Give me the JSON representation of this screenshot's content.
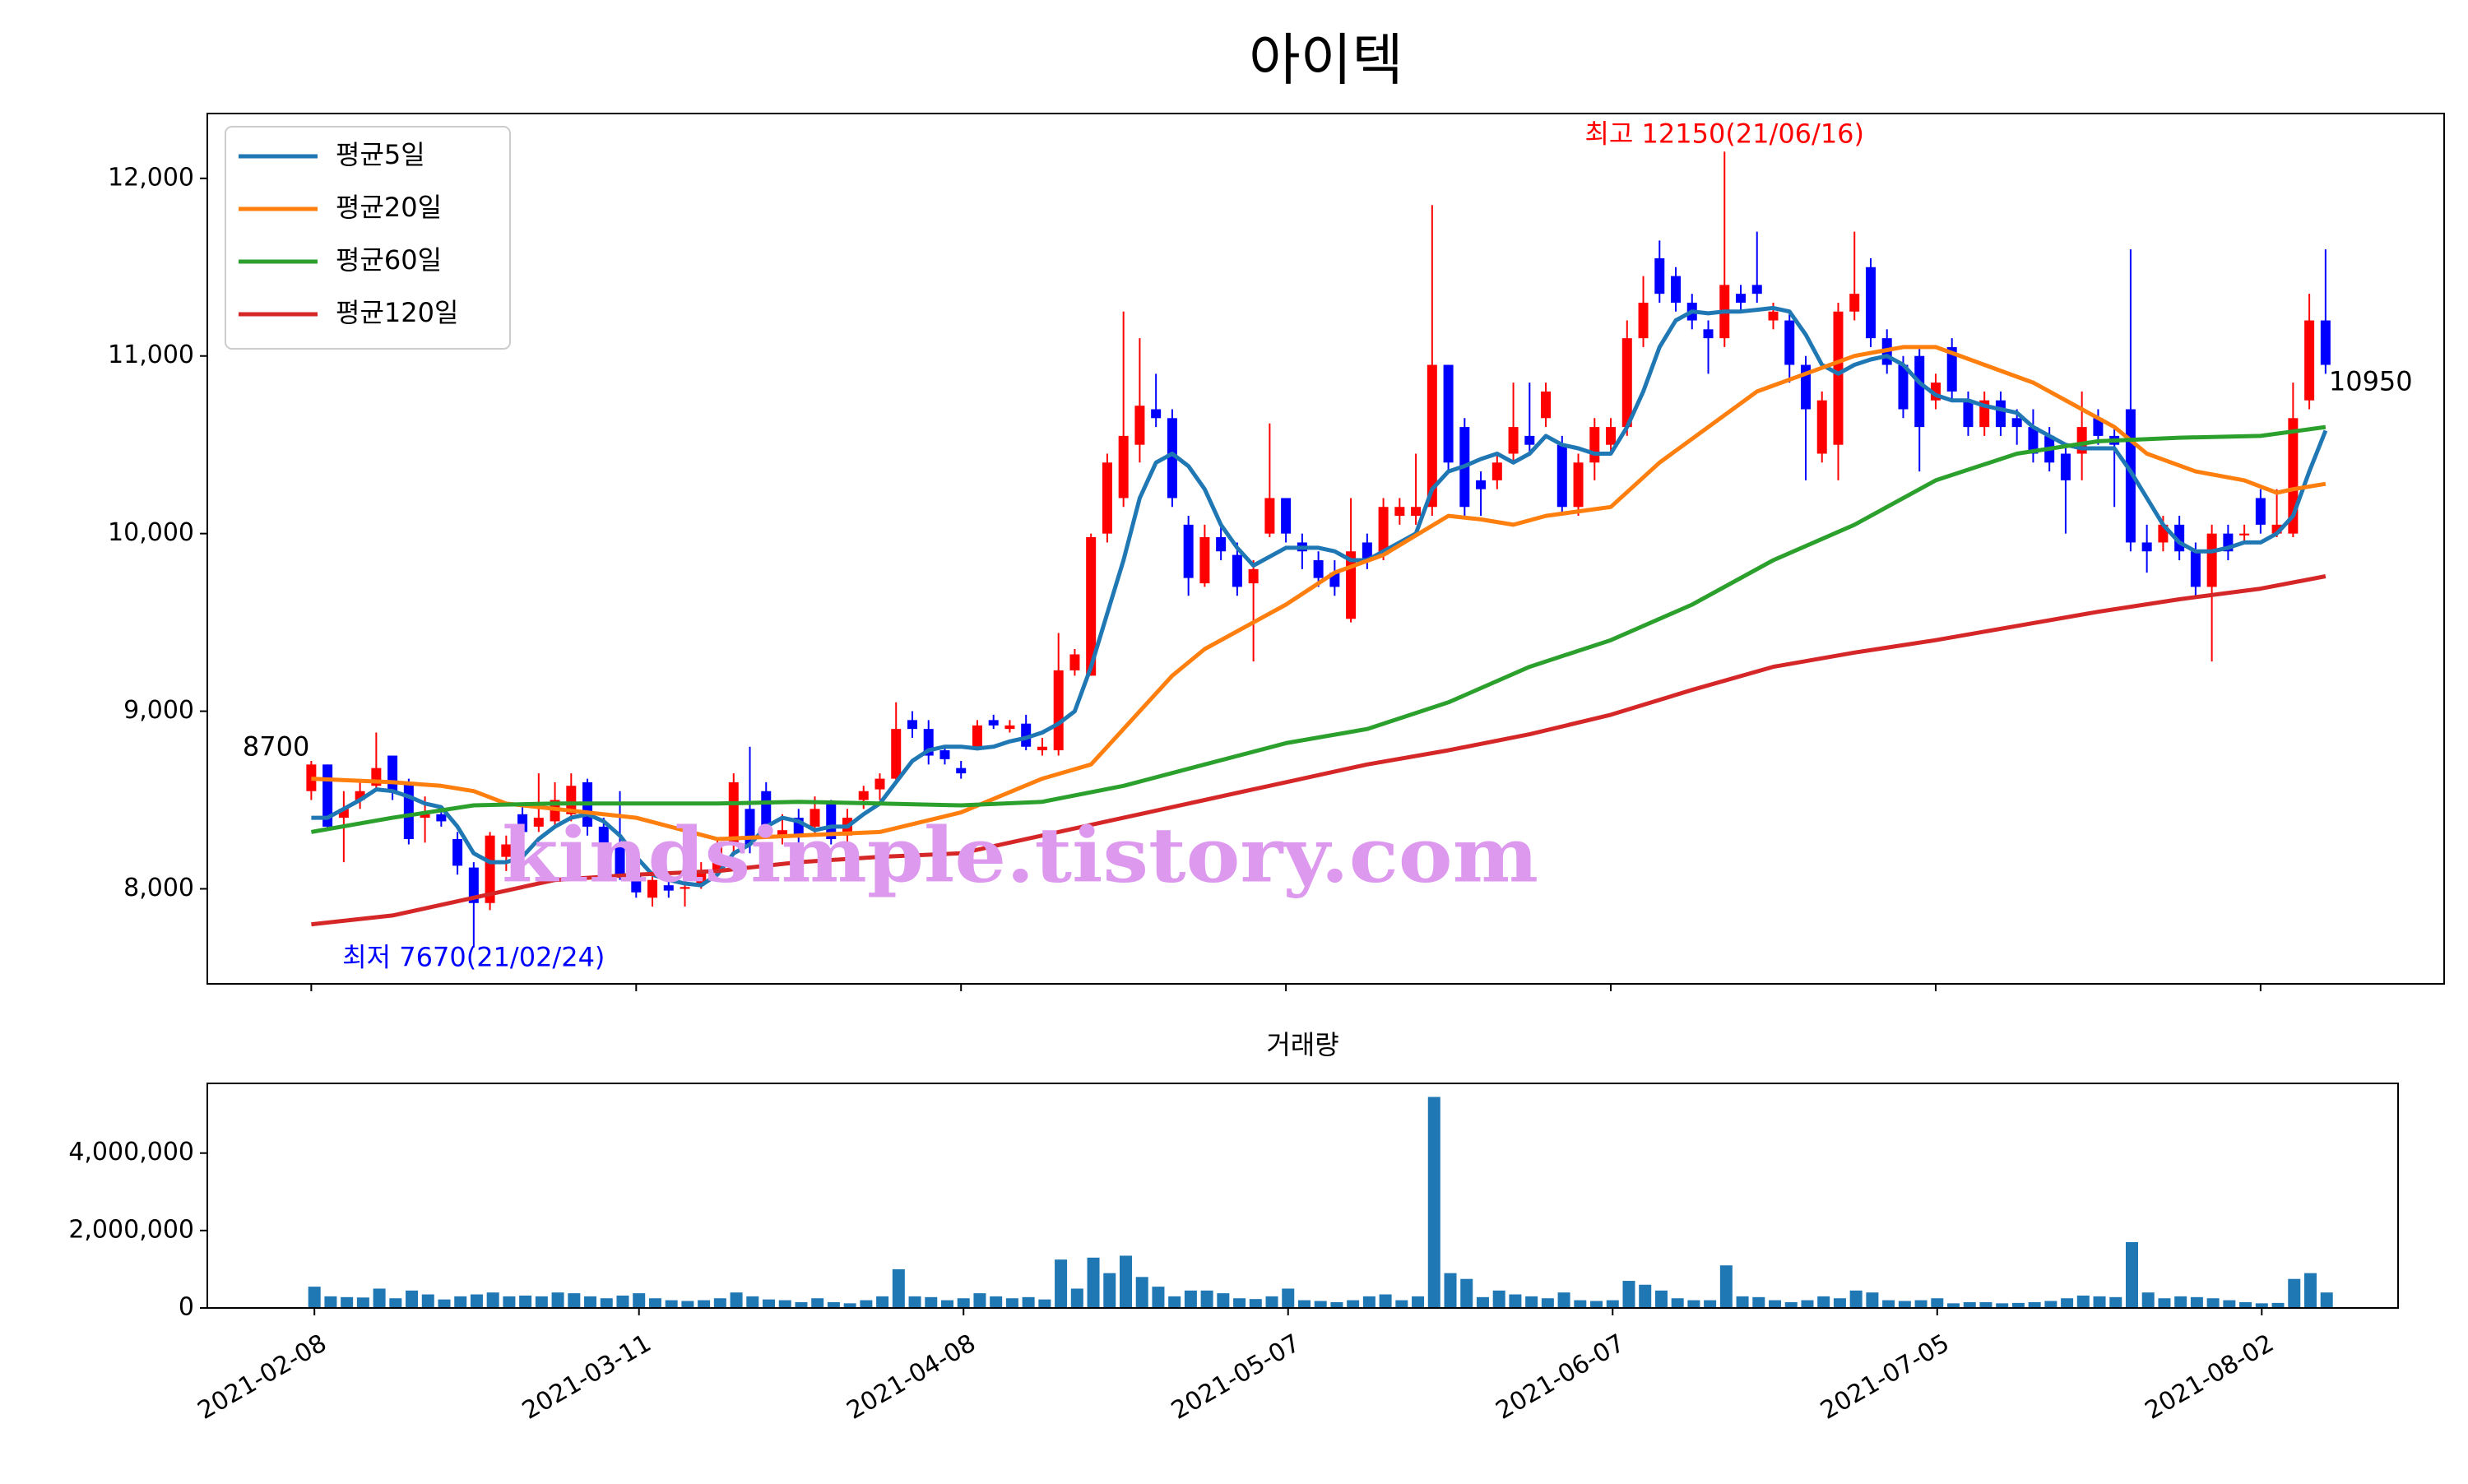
{
  "chart_data": [
    {
      "type": "candlestick",
      "title": "아이텍",
      "xlim": [
        -6.4,
        131.3
      ],
      "ylim": [
        7465,
        12365
      ],
      "yticks": [
        {
          "value": 8000,
          "label": "8,000"
        },
        {
          "value": 9000,
          "label": "9,000"
        },
        {
          "value": 10000,
          "label": "10,000"
        },
        {
          "value": 11000,
          "label": "11,000"
        },
        {
          "value": 12000,
          "label": "12,000"
        }
      ],
      "up_color": "#ff0000",
      "down_color": "#0000ff",
      "legend": "upper left",
      "open": [
        8550,
        8700,
        8400,
        8500,
        8580,
        8750,
        8600,
        8400,
        8420,
        8280,
        8120,
        7920,
        8180,
        8420,
        8350,
        8380,
        8420,
        8600,
        8350,
        8250,
        8080,
        7950,
        8020,
        8000,
        8030,
        8100,
        8250,
        8450,
        8550,
        8300,
        8400,
        8350,
        8480,
        8300,
        8500,
        8560,
        8620,
        8950,
        8900,
        8780,
        8680,
        8800,
        8950,
        8900,
        8930,
        8780,
        8780,
        9230,
        9200,
        10000,
        10200,
        10500,
        10700,
        10650,
        10050,
        9720,
        9980,
        9880,
        9720,
        10000,
        10200,
        9950,
        9850,
        9780,
        9520,
        9950,
        9880,
        10100,
        10100,
        10150,
        10950,
        10600,
        10300,
        10300,
        10450,
        10550,
        10650,
        10500,
        10150,
        10400,
        10500,
        10600,
        11100,
        11550,
        11450,
        11300,
        11150,
        11100,
        11350,
        11400,
        11200,
        11200,
        10950,
        10450,
        10500,
        11250,
        11500,
        11100,
        10950,
        11000,
        10750,
        11050,
        10750,
        10600,
        10750,
        10650,
        10600,
        10550,
        10450,
        10450,
        10650,
        10550,
        10700,
        9950,
        9950,
        10050,
        9900,
        9700,
        10000,
        9990,
        10200,
        10000,
        10000,
        10750,
        11200
      ],
      "high": [
        8720,
        8700,
        8550,
        8600,
        8880,
        8750,
        8620,
        8520,
        8450,
        8320,
        8150,
        8320,
        8300,
        8480,
        8650,
        8600,
        8650,
        8620,
        8400,
        8550,
        8100,
        8080,
        8050,
        8050,
        8150,
        8280,
        8650,
        8800,
        8600,
        8420,
        8450,
        8520,
        8500,
        8450,
        8580,
        8650,
        9050,
        9000,
        8950,
        8800,
        8720,
        8950,
        8980,
        8950,
        8980,
        8850,
        9440,
        9350,
        10000,
        10450,
        11250,
        11100,
        10900,
        10700,
        10100,
        10050,
        10050,
        9950,
        9850,
        10620,
        10200,
        10000,
        9900,
        9850,
        10200,
        10000,
        10200,
        10200,
        10450,
        11850,
        10950,
        10650,
        10350,
        10450,
        10850,
        10850,
        10850,
        10550,
        10450,
        10650,
        10650,
        11200,
        11450,
        11650,
        11500,
        11350,
        11200,
        12150,
        11400,
        11700,
        11300,
        11250,
        11000,
        10800,
        11300,
        11700,
        11550,
        11150,
        11000,
        11050,
        10900,
        11100,
        10800,
        10800,
        10800,
        10700,
        10700,
        10600,
        10500,
        10800,
        10700,
        10600,
        11600,
        10050,
        10100,
        10100,
        9950,
        10050,
        10050,
        10050,
        10250,
        10250,
        10850,
        11350,
        11600
      ],
      "low": [
        8500,
        8330,
        8150,
        8450,
        8550,
        8500,
        8250,
        8260,
        8350,
        8080,
        7670,
        7880,
        8100,
        8300,
        8320,
        8350,
        8380,
        8300,
        8150,
        8050,
        7950,
        7900,
        7950,
        7900,
        8000,
        8080,
        8200,
        8200,
        8300,
        8250,
        8250,
        8300,
        8250,
        8250,
        8450,
        8500,
        8600,
        8850,
        8700,
        8700,
        8620,
        8780,
        8900,
        8880,
        8780,
        8750,
        8750,
        9200,
        9200,
        9950,
        10150,
        10400,
        10600,
        10150,
        9650,
        9700,
        9850,
        9650,
        9280,
        9980,
        9950,
        9800,
        9700,
        9650,
        9500,
        9800,
        9850,
        10050,
        10050,
        10100,
        10350,
        10100,
        10100,
        10250,
        10400,
        10450,
        10600,
        10100,
        10100,
        10300,
        10450,
        10550,
        11050,
        11300,
        11250,
        11150,
        10900,
        11050,
        11250,
        11300,
        11150,
        10850,
        10300,
        10400,
        10300,
        11200,
        11050,
        10900,
        10650,
        10350,
        10700,
        10750,
        10550,
        10550,
        10550,
        10500,
        10400,
        10350,
        10000,
        10300,
        10500,
        10150,
        9900,
        9780,
        9900,
        9850,
        9650,
        9280,
        9850,
        9950,
        10000,
        9980,
        9980,
        10700,
        10900
      ],
      "close": [
        8700,
        8350,
        8450,
        8550,
        8680,
        8550,
        8280,
        8420,
        8380,
        8130,
        7920,
        8300,
        8250,
        8320,
        8400,
        8500,
        8580,
        8350,
        8200,
        8080,
        7980,
        8050,
        7990,
        8010,
        8100,
        8250,
        8600,
        8250,
        8350,
        8330,
        8300,
        8450,
        8280,
        8400,
        8550,
        8620,
        8900,
        8900,
        8750,
        8730,
        8650,
        8920,
        8920,
        8920,
        8800,
        8800,
        9230,
        9320,
        9980,
        10400,
        10550,
        10720,
        10650,
        10200,
        9750,
        9980,
        9900,
        9700,
        9800,
        10200,
        10000,
        9900,
        9750,
        9700,
        9900,
        9850,
        10150,
        10150,
        10150,
        10950,
        10400,
        10150,
        10250,
        10400,
        10600,
        10500,
        10800,
        10150,
        10400,
        10600,
        10600,
        11100,
        11300,
        11350,
        11300,
        11200,
        11100,
        11400,
        11300,
        11350,
        11250,
        10950,
        10700,
        10750,
        11250,
        11350,
        11100,
        10950,
        10700,
        10600,
        10850,
        10800,
        10600,
        10750,
        10600,
        10600,
        10450,
        10400,
        10300,
        10600,
        10550,
        10500,
        9950,
        9900,
        10050,
        9900,
        9700,
        10000,
        9900,
        10000,
        10050,
        10050,
        10650,
        11200,
        10950
      ],
      "series": [
        {
          "name": "평균5일",
          "color": "#1f77b4",
          "values": [
            8400,
            8400,
            8450,
            8500,
            8560,
            8550,
            8520,
            8480,
            8460,
            8350,
            8200,
            8150,
            8150,
            8180,
            8280,
            8350,
            8400,
            8420,
            8380,
            8300,
            8180,
            8080,
            8050,
            8030,
            8020,
            8080,
            8200,
            8250,
            8350,
            8400,
            8380,
            8330,
            8350,
            8350,
            8420,
            8480,
            8600,
            8720,
            8780,
            8800,
            8800,
            8790,
            8800,
            8830,
            8850,
            8880,
            8930,
            9000,
            9250,
            9550,
            9850,
            10200,
            10400,
            10450,
            10380,
            10250,
            10050,
            9920,
            9820,
            9870,
            9920,
            9920,
            9920,
            9900,
            9850,
            9850,
            9900,
            9950,
            10000,
            10250,
            10350,
            10380,
            10420,
            10450,
            10400,
            10450,
            10550,
            10500,
            10480,
            10450,
            10450,
            10600,
            10800,
            11050,
            11200,
            11250,
            11240,
            11250,
            11250,
            11260,
            11270,
            11250,
            11120,
            10950,
            10900,
            10950,
            10980,
            11000,
            10950,
            10850,
            10780,
            10750,
            10750,
            10720,
            10700,
            10680,
            10600,
            10550,
            10500,
            10480,
            10480,
            10480,
            10350,
            10200,
            10050,
            9950,
            9900,
            9900,
            9920,
            9950,
            9950,
            10000,
            10100,
            10350,
            10580
          ]
        },
        {
          "name": "평균20일",
          "color": "#ff7f0e",
          "x": [
            0,
            5,
            8,
            10,
            12,
            15,
            20,
            25,
            30,
            35,
            40,
            45,
            48,
            50,
            53,
            55,
            58,
            60,
            63,
            66,
            70,
            72,
            74,
            76,
            80,
            83,
            86,
            89,
            92,
            95,
            98,
            100,
            103,
            106,
            109,
            111,
            113,
            116,
            119,
            121,
            122,
            124
          ],
          "values": [
            8620,
            8600,
            8580,
            8550,
            8480,
            8450,
            8400,
            8280,
            8300,
            8320,
            8430,
            8620,
            8700,
            8900,
            9200,
            9350,
            9500,
            9600,
            9780,
            9880,
            10100,
            10080,
            10050,
            10100,
            10150,
            10400,
            10600,
            10800,
            10900,
            11000,
            11050,
            11050,
            10950,
            10850,
            10700,
            10600,
            10450,
            10350,
            10300,
            10230,
            10250,
            10280
          ]
        },
        {
          "name": "평균60일",
          "color": "#2ca02c",
          "x": [
            0,
            5,
            10,
            15,
            20,
            25,
            30,
            35,
            40,
            45,
            50,
            55,
            60,
            65,
            70,
            75,
            80,
            85,
            90,
            95,
            100,
            105,
            110,
            115,
            120,
            124
          ],
          "values": [
            8320,
            8400,
            8470,
            8480,
            8480,
            8480,
            8490,
            8480,
            8470,
            8490,
            8580,
            8700,
            8820,
            8900,
            9050,
            9250,
            9400,
            9600,
            9850,
            10050,
            10300,
            10450,
            10520,
            10540,
            10550,
            10600
          ]
        },
        {
          "name": "평균120일",
          "color": "#d62728",
          "x": [
            0,
            5,
            10,
            15,
            20,
            25,
            30,
            35,
            40,
            45,
            50,
            55,
            60,
            65,
            70,
            75,
            80,
            85,
            90,
            95,
            100,
            105,
            110,
            115,
            120,
            124
          ],
          "values": [
            7800,
            7850,
            7950,
            8050,
            8080,
            8100,
            8150,
            8180,
            8200,
            8300,
            8400,
            8500,
            8600,
            8700,
            8780,
            8870,
            8980,
            9120,
            9250,
            9330,
            9400,
            9480,
            9560,
            9630,
            9690,
            9760
          ]
        }
      ],
      "annotations": [
        {
          "text": "8700",
          "x": 0,
          "y": 8700,
          "ha": "right",
          "color": "#000000"
        },
        {
          "text": "10950",
          "x": 124,
          "y": 10950,
          "ha": "left",
          "color": "#000000"
        },
        {
          "text": "최고 12150(21/06/16)",
          "x": 87,
          "y": 12150,
          "ha": "center",
          "va": "bottom",
          "color": "#ff0000"
        },
        {
          "text": "최저 7670(21/02/24)",
          "x": 10,
          "y": 7670,
          "ha": "center",
          "va": "top",
          "color": "#0000ff"
        }
      ],
      "watermark": {
        "text": "kindsimple.tistory.com",
        "color": "#dd99ee"
      }
    },
    {
      "type": "bar",
      "title": "거래량",
      "color": "#1f77b4",
      "xlim": [
        -6.6,
        128.4
      ],
      "ylim": [
        0,
        5800000
      ],
      "yticks": [
        0,
        {
          "value": 2000000,
          "label": "2,000,000"
        },
        {
          "value": 4000000,
          "label": "4,000,000"
        }
      ],
      "categories": [
        "2021-02-08",
        null,
        null,
        null,
        null,
        null,
        null,
        null,
        null,
        null,
        null,
        null,
        null,
        null,
        null,
        null,
        null,
        null,
        null,
        null,
        "2021-03-11",
        null,
        null,
        null,
        null,
        null,
        null,
        null,
        null,
        null,
        null,
        null,
        null,
        null,
        null,
        null,
        null,
        null,
        null,
        null,
        "2021-04-08",
        null,
        null,
        null,
        null,
        null,
        null,
        null,
        null,
        null,
        null,
        null,
        null,
        null,
        null,
        null,
        null,
        null,
        null,
        null,
        "2021-05-07",
        null,
        null,
        null,
        null,
        null,
        null,
        null,
        null,
        null,
        null,
        null,
        null,
        null,
        null,
        null,
        null,
        null,
        null,
        null,
        "2021-06-07",
        null,
        null,
        null,
        null,
        null,
        null,
        null,
        null,
        null,
        null,
        null,
        null,
        null,
        null,
        null,
        null,
        null,
        null,
        null,
        "2021-07-05",
        null,
        null,
        null,
        null,
        null,
        null,
        null,
        null,
        null,
        null,
        null,
        null,
        null,
        null,
        null,
        null,
        null,
        null,
        null,
        "2021-08-02",
        null,
        null,
        null,
        null
      ],
      "values": [
        550000,
        300000,
        280000,
        270000,
        500000,
        250000,
        450000,
        350000,
        220000,
        300000,
        350000,
        400000,
        300000,
        320000,
        300000,
        400000,
        380000,
        300000,
        250000,
        320000,
        380000,
        250000,
        200000,
        180000,
        200000,
        250000,
        400000,
        300000,
        220000,
        200000,
        150000,
        250000,
        150000,
        120000,
        200000,
        300000,
        1000000,
        300000,
        280000,
        200000,
        250000,
        380000,
        300000,
        250000,
        280000,
        220000,
        1250000,
        500000,
        1300000,
        900000,
        1350000,
        800000,
        550000,
        300000,
        450000,
        450000,
        380000,
        250000,
        230000,
        300000,
        500000,
        200000,
        180000,
        150000,
        200000,
        300000,
        350000,
        200000,
        300000,
        5450000,
        900000,
        750000,
        280000,
        450000,
        350000,
        300000,
        250000,
        400000,
        200000,
        180000,
        200000,
        700000,
        600000,
        450000,
        250000,
        200000,
        200000,
        1100000,
        300000,
        280000,
        200000,
        150000,
        200000,
        300000,
        250000,
        450000,
        400000,
        200000,
        180000,
        200000,
        250000,
        120000,
        150000,
        150000,
        120000,
        130000,
        150000,
        180000,
        250000,
        320000,
        300000,
        280000,
        1700000,
        400000,
        250000,
        300000,
        280000,
        250000,
        200000,
        150000,
        120000,
        130000,
        750000,
        900000,
        400000
      ]
    }
  ]
}
